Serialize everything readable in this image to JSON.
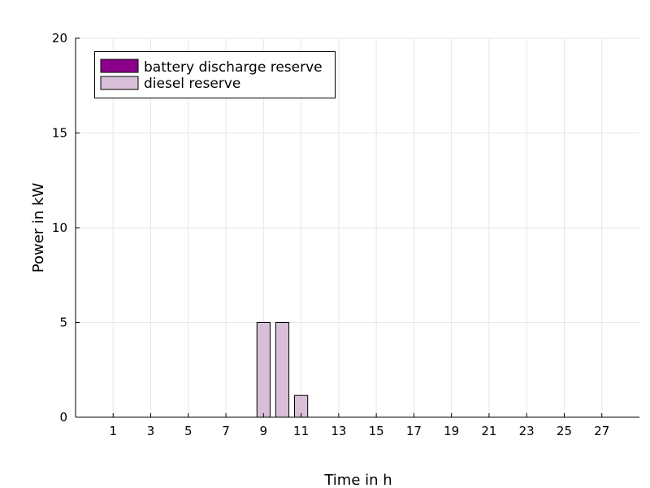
{
  "chart_data": {
    "type": "bar",
    "stacked": true,
    "xlabel": "Time in h",
    "ylabel": "Power in kW",
    "xlim": [
      -1,
      29
    ],
    "ylim": [
      0,
      20
    ],
    "xticks": [
      1,
      3,
      5,
      7,
      9,
      11,
      13,
      15,
      17,
      19,
      21,
      23,
      25,
      27
    ],
    "yticks": [
      0,
      5,
      10,
      15,
      20
    ],
    "x": [
      1,
      2,
      3,
      4,
      5,
      6,
      7,
      8,
      9,
      10,
      11,
      12,
      13,
      14,
      15,
      16,
      17,
      18,
      19,
      20,
      21,
      22,
      23,
      24,
      25,
      26,
      27,
      28
    ],
    "bar_width": 0.7,
    "grid": true,
    "legend_position": "top-left",
    "series": [
      {
        "name": "battery discharge reserve",
        "color": "#8b008b",
        "values": [
          0,
          0,
          0,
          0,
          0,
          0,
          0,
          0,
          0,
          0,
          0,
          0,
          0,
          0,
          0,
          0,
          0,
          0,
          0,
          0,
          0,
          0,
          0,
          0,
          0,
          0,
          0,
          0
        ]
      },
      {
        "name": "diesel reserve",
        "color": "#d8bfd8",
        "values": [
          0,
          0,
          0,
          0,
          0,
          0,
          0,
          0,
          5,
          5,
          1.15,
          0,
          0,
          0,
          0,
          0,
          0,
          0,
          0,
          0,
          0,
          0,
          0,
          0,
          0,
          0,
          0,
          0
        ]
      }
    ]
  }
}
